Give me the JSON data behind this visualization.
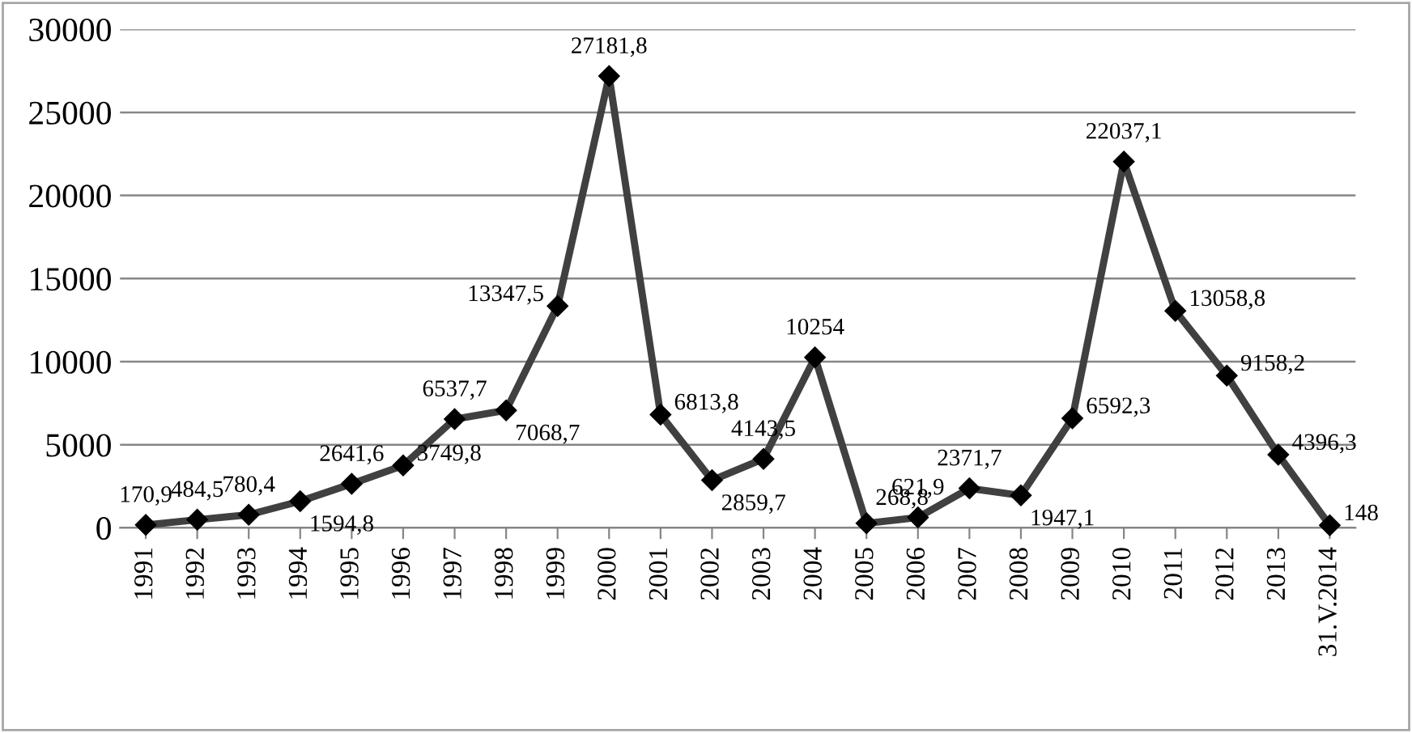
{
  "chart_data": {
    "type": "line",
    "categories": [
      "1991",
      "1992",
      "1993",
      "1994",
      "1995",
      "1996",
      "1997",
      "1998",
      "1999",
      "2000",
      "2001",
      "2002",
      "2003",
      "2004",
      "2005",
      "2006",
      "2007",
      "2008",
      "2009",
      "2010",
      "2011",
      "2012",
      "2013",
      "31.V.2014"
    ],
    "series": [
      {
        "color": "#404040",
        "values": [
          170.9,
          484.5,
          780.4,
          1594.8,
          2641.6,
          3749.8,
          6537.7,
          7068.7,
          13347.5,
          27181.8,
          6813.8,
          2859.7,
          4143.5,
          10254,
          268.8,
          621.9,
          2371.7,
          1947.1,
          6592.3,
          22037.1,
          13058.8,
          9158.2,
          4396.3,
          148
        ],
        "value_labels": [
          "170,9",
          "484,5",
          "780,4",
          "1594,8",
          "2641,6",
          "3749,8",
          "6537,7",
          "7068,7",
          "13347,5",
          "27181,8",
          "6813,8",
          "2859,7",
          "4143,5",
          "10254",
          "268,8",
          "621,9",
          "2371,7",
          "1947,1",
          "6592,3",
          "22037,1",
          "13058,8",
          "9158,2",
          "4396,3",
          "148"
        ]
      }
    ],
    "ylim": [
      0,
      30000
    ],
    "yticks": [
      0,
      5000,
      10000,
      15000,
      20000,
      25000,
      30000
    ],
    "grid": "y",
    "marker": "diamond",
    "line_style": "solid",
    "legend": false
  }
}
